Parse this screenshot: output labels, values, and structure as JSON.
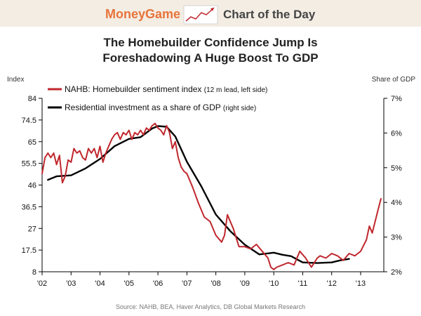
{
  "header": {
    "brand": "MoneyGame",
    "tagline": "Chart of the Day",
    "brand_color": "#e8743b",
    "logo_icon": "rising-line-chart-icon"
  },
  "chart_data": {
    "type": "line",
    "title_lines": [
      "The Homebuilder Confidence Jump Is",
      "Foreshadowing A Huge Boost To GDP"
    ],
    "left_axis_label": "Index",
    "right_axis_label": "Share of GDP",
    "left_ticks": [
      "84",
      "74.5",
      "65",
      "55.5",
      "46",
      "36.5",
      "27",
      "17.5",
      "8"
    ],
    "right_ticks": [
      "7%",
      "6%",
      "5%",
      "4%",
      "3%",
      "2%"
    ],
    "x_ticks": [
      "'02",
      "'03",
      "'04",
      "'05",
      "'06",
      "'07",
      "'08",
      "'09",
      "'10",
      "'11",
      "'12",
      "'13"
    ],
    "left_range": [
      8,
      84
    ],
    "right_range": [
      2,
      7
    ],
    "x_range": [
      2002,
      2013.8
    ],
    "legend_placement": "top-left",
    "source": "Source: NAHB, BEA, Haver Analytics, DB Global Markets Research",
    "series": [
      {
        "name": "NAHB: Homebuilder sentiment index",
        "note": "(12 m lead, left side)",
        "axis": "left",
        "color": "#c0272d",
        "x": [
          2002.0,
          2002.1,
          2002.2,
          2002.3,
          2002.4,
          2002.5,
          2002.6,
          2002.7,
          2002.8,
          2002.9,
          2003.0,
          2003.1,
          2003.2,
          2003.3,
          2003.4,
          2003.5,
          2003.6,
          2003.7,
          2003.8,
          2003.9,
          2004.0,
          2004.1,
          2004.2,
          2004.3,
          2004.4,
          2004.5,
          2004.6,
          2004.7,
          2004.8,
          2004.9,
          2005.0,
          2005.1,
          2005.2,
          2005.3,
          2005.4,
          2005.5,
          2005.6,
          2005.7,
          2005.8,
          2005.9,
          2006.0,
          2006.1,
          2006.2,
          2006.3,
          2006.4,
          2006.5,
          2006.6,
          2006.7,
          2006.8,
          2006.9,
          2007.0,
          2007.2,
          2007.4,
          2007.6,
          2007.8,
          2008.0,
          2008.2,
          2008.3,
          2008.4,
          2008.6,
          2008.8,
          2009.0,
          2009.2,
          2009.4,
          2009.6,
          2009.8,
          2009.9,
          2010.0,
          2010.1,
          2010.3,
          2010.5,
          2010.7,
          2010.9,
          2011.1,
          2011.3,
          2011.5,
          2011.6,
          2011.8,
          2012.0,
          2012.2,
          2012.4,
          2012.6,
          2012.8,
          2013.0,
          2013.2,
          2013.3,
          2013.4,
          2013.5,
          2013.6,
          2013.7
        ],
        "values": [
          51,
          58,
          60,
          58,
          60,
          55,
          59,
          47,
          50,
          57,
          56,
          62,
          60,
          61,
          58,
          57,
          62,
          60,
          62,
          58,
          63,
          56,
          60,
          63,
          66,
          68,
          69,
          66,
          69,
          68,
          70,
          66,
          69,
          68,
          70,
          68,
          71,
          70,
          72,
          73,
          71,
          70,
          68,
          72,
          69,
          62,
          65,
          58,
          54,
          52,
          51,
          45,
          38,
          32,
          30,
          24,
          21,
          24,
          33,
          27,
          19,
          19,
          18,
          20,
          17,
          14,
          10,
          9,
          10,
          11,
          12,
          11,
          17,
          14,
          10,
          14,
          15,
          14,
          16,
          15,
          13,
          16,
          15,
          17,
          22,
          28,
          25,
          30,
          35,
          40
        ]
      },
      {
        "name": "Residential investment as a share of GDP",
        "note": "(right side)",
        "axis": "right",
        "color": "#000000",
        "x": [
          2002.2,
          2002.5,
          2003.0,
          2003.5,
          2004.0,
          2004.5,
          2005.0,
          2005.4,
          2005.8,
          2006.0,
          2006.3,
          2006.6,
          2007.0,
          2007.5,
          2008.0,
          2008.5,
          2009.0,
          2009.5,
          2010.0,
          2010.3,
          2010.6,
          2011.0,
          2011.5,
          2012.0,
          2012.3,
          2012.6
        ],
        "values": [
          4.65,
          4.75,
          4.78,
          4.98,
          5.25,
          5.62,
          5.83,
          5.88,
          6.13,
          6.2,
          6.18,
          5.9,
          5.17,
          4.46,
          3.65,
          3.17,
          2.78,
          2.5,
          2.55,
          2.49,
          2.45,
          2.27,
          2.25,
          2.27,
          2.33,
          2.37
        ]
      }
    ]
  }
}
